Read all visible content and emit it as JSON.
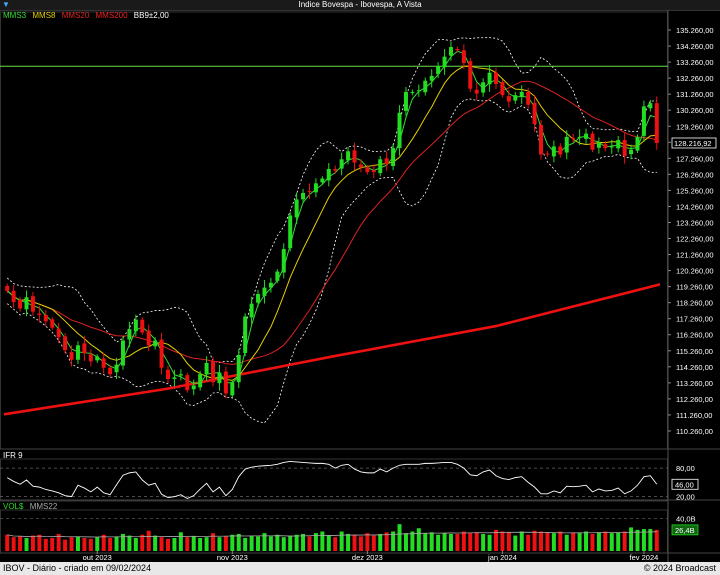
{
  "window": {
    "title": "Indice Bovespa - Ibovespa, A Vista"
  },
  "legend": {
    "items": [
      {
        "label": "MMS3",
        "color": "#33dd33"
      },
      {
        "label": "MMS8",
        "color": "#e0d000"
      },
      {
        "label": "MMS20",
        "color": "#dd2222"
      },
      {
        "label": "MMS200",
        "color": "#ee2222"
      },
      {
        "label": "BB9±2,00",
        "color": "#ffffff"
      }
    ]
  },
  "ifr": {
    "label": "IFR 9",
    "current_label": "46,00"
  },
  "vol": {
    "label": "VOL$",
    "ma_label": "MMS22",
    "current_label": "26,4B"
  },
  "footer": {
    "left": "IBOV - Diário - criado em 09/02/2024",
    "right": "© 2024 Broadcast"
  },
  "colors": {
    "up": "#22dd22",
    "down": "#ee1111",
    "mms3": "#33dd33",
    "mms8": "#e0d000",
    "mms20": "#dd2222",
    "mms200": "#ee1111",
    "bb": "#ffffff",
    "hline": "#66dd44"
  },
  "chart_data": [
    {
      "type": "candlestick",
      "title": "Indice Bovespa - Ibovespa, A Vista",
      "ylim": [
        109260,
        136260
      ],
      "y_ticks": [
        "135.260,00",
        "134.260,00",
        "133.260,00",
        "132.260,00",
        "131.260,00",
        "130.260,00",
        "129.260,00",
        "128.260,00",
        "127.260,00",
        "126.260,00",
        "125.260,00",
        "124.260,00",
        "123.260,00",
        "122.260,00",
        "121.260,00",
        "120.260,00",
        "119.260,00",
        "118.260,00",
        "117.260,00",
        "116.260,00",
        "115.260,00",
        "114.260,00",
        "113.260,00",
        "112.260,00",
        "111.260,00",
        "110.260,00"
      ],
      "y_tick_values": [
        135260,
        134260,
        133260,
        132260,
        131260,
        130260,
        129260,
        128260,
        127260,
        126260,
        125260,
        124260,
        123260,
        122260,
        121260,
        120260,
        119260,
        118260,
        117260,
        116260,
        115260,
        114260,
        113260,
        112260,
        111260,
        110260
      ],
      "x_ticks": [
        {
          "label": "out 2023",
          "index": 14
        },
        {
          "label": "nov 2023",
          "index": 35
        },
        {
          "label": "dez 2023",
          "index": 56
        },
        {
          "label": "jan 2024",
          "index": 77
        },
        {
          "label": "fev 2024",
          "index": 99
        }
      ],
      "current_price_label": "128.216,92",
      "current_price": 128217,
      "horizontal_line": 133000,
      "closes": [
        119000,
        118300,
        117900,
        118600,
        117700,
        117500,
        117100,
        116700,
        116100,
        115300,
        114700,
        115600,
        115100,
        114600,
        114900,
        114200,
        113800,
        114400,
        115900,
        116600,
        117200,
        116400,
        115600,
        115900,
        114200,
        113500,
        113600,
        113800,
        112800,
        113100,
        113800,
        114500,
        113300,
        113900,
        112600,
        113300,
        115000,
        117400,
        118200,
        118800,
        119200,
        119500,
        120200,
        121600,
        123700,
        124700,
        125100,
        125200,
        125700,
        126000,
        126600,
        126500,
        127200,
        127700,
        127000,
        126700,
        126400,
        126400,
        127200,
        126900,
        127900,
        130100,
        131400,
        131400,
        131500,
        132100,
        132400,
        133000,
        133600,
        134200,
        134000,
        133200,
        131600,
        131300,
        132000,
        132600,
        131900,
        131200,
        130800,
        131200,
        131400,
        130600,
        129400,
        127500,
        127500,
        128000,
        127500,
        128600,
        128500,
        128600,
        128800,
        127800,
        128200,
        127900,
        128000,
        128400,
        127400,
        127800,
        128600,
        130500,
        130700,
        128217
      ],
      "series": [
        {
          "name": "MMS3"
        },
        {
          "name": "MMS8"
        },
        {
          "name": "MMS20"
        },
        {
          "name": "MMS200",
          "values": [
            111300,
            112900,
            114900,
            116800,
            119400
          ]
        },
        {
          "name": "BB9±2,00"
        }
      ]
    },
    {
      "type": "line",
      "title": "IFR 9",
      "ylim": [
        15,
        95
      ],
      "y_ticks": [
        "80,00",
        "20,00"
      ],
      "y_tick_values": [
        80,
        20
      ],
      "current_label": "46,00",
      "values": [
        60,
        52,
        46,
        55,
        42,
        40,
        35,
        32,
        28,
        22,
        20,
        44,
        38,
        30,
        40,
        28,
        24,
        45,
        65,
        70,
        72,
        55,
        44,
        48,
        25,
        18,
        20,
        24,
        16,
        22,
        36,
        48,
        30,
        40,
        22,
        35,
        62,
        78,
        82,
        84,
        85,
        86,
        88,
        92,
        94,
        93,
        92,
        91,
        90,
        90,
        88,
        80,
        86,
        88,
        78,
        72,
        70,
        70,
        78,
        72,
        80,
        86,
        88,
        88,
        88,
        90,
        90,
        91,
        92,
        92,
        88,
        80,
        66,
        64,
        72,
        76,
        64,
        58,
        56,
        60,
        62,
        50,
        40,
        26,
        26,
        32,
        28,
        42,
        41,
        42,
        44,
        30,
        36,
        32,
        33,
        38,
        26,
        32,
        44,
        62,
        64,
        46
      ]
    },
    {
      "type": "bar",
      "title": "VOL$",
      "ylim": [
        0,
        48
      ],
      "y_ticks": [
        "40,0B"
      ],
      "y_tick_values": [
        40
      ],
      "current_label": "26,4B",
      "ma_name": "MMS22",
      "values": [
        20,
        17,
        18,
        16,
        19,
        20,
        15,
        16,
        21,
        14,
        17,
        18,
        16,
        15,
        17,
        20,
        16,
        18,
        21,
        19,
        16,
        20,
        25,
        19,
        17,
        15,
        16,
        23,
        17,
        18,
        16,
        17,
        22,
        17,
        18,
        20,
        21,
        16,
        19,
        18,
        22,
        18,
        20,
        17,
        19,
        20,
        21,
        18,
        22,
        24,
        19,
        17,
        24,
        21,
        20,
        18,
        22,
        19,
        21,
        23,
        24,
        33,
        22,
        24,
        28,
        22,
        23,
        20,
        22,
        21,
        21,
        24,
        22,
        23,
        21,
        20,
        26,
        24,
        23,
        19,
        24,
        20,
        25,
        24,
        23,
        22,
        24,
        20,
        23,
        22,
        24,
        21,
        23,
        24,
        22,
        23,
        24,
        29,
        26,
        27,
        27,
        26
      ]
    }
  ]
}
